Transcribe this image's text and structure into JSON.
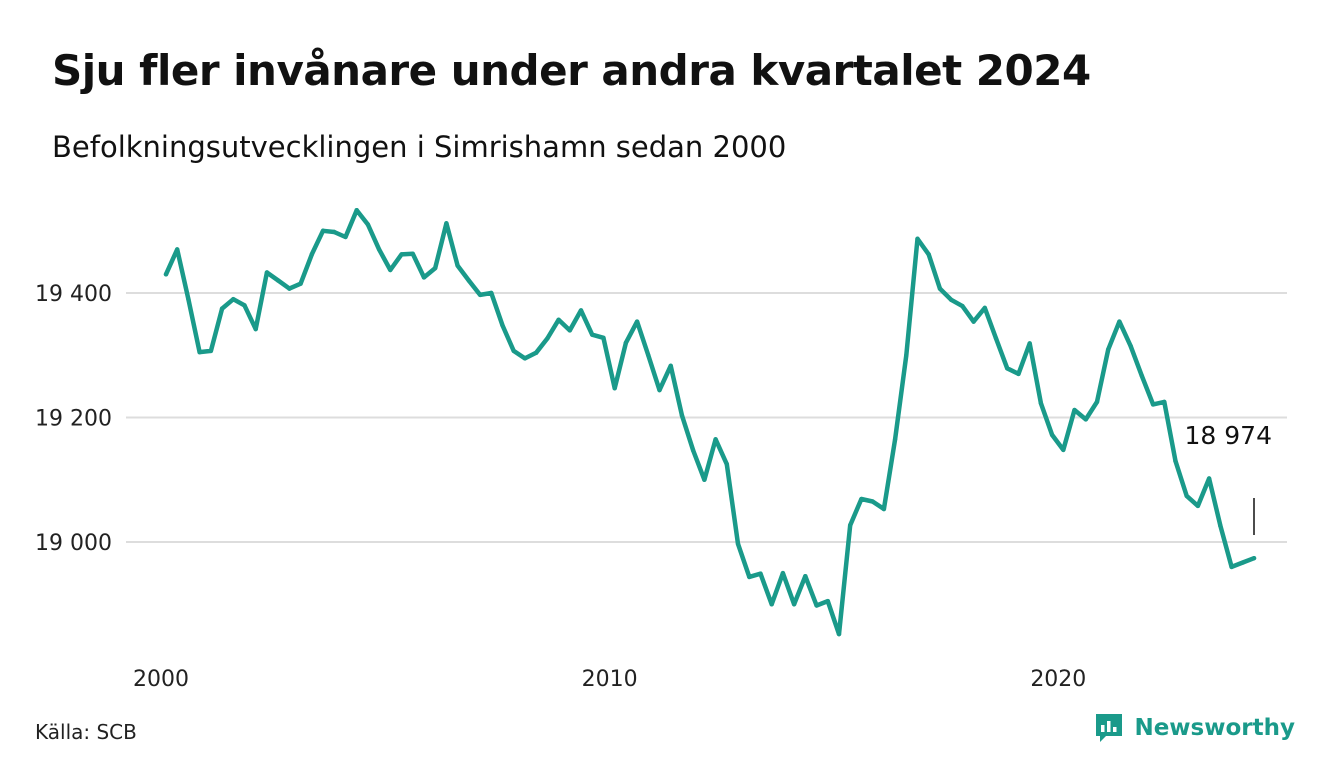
{
  "title": "Sju fler invånare under andra kvartalet 2024",
  "subtitle": "Befolkningsutvecklingen i Simrishamn sedan 2000",
  "source": "Källa: SCB",
  "brand": {
    "name": "Newsworthy",
    "icon": "newsworthy-logo-icon"
  },
  "colors": {
    "line": "#1a9a8a",
    "grid": "#dddddd",
    "text": "#111111"
  },
  "chart_data": {
    "type": "line",
    "title": "Sju fler invånare under andra kvartalet 2024",
    "subtitle": "Befolkningsutvecklingen i Simrishamn sedan 2000",
    "xlabel": "",
    "ylabel": "",
    "x_ticks": [
      {
        "value": 2000,
        "label": "2000"
      },
      {
        "value": 2010,
        "label": "2010"
      },
      {
        "value": 2020,
        "label": "2020"
      }
    ],
    "y_ticks": [
      {
        "value": 19000,
        "label": "19 000"
      },
      {
        "value": 19200,
        "label": "19 200"
      },
      {
        "value": 19400,
        "label": "19 400"
      }
    ],
    "xlim": [
      2000,
      2024.25
    ],
    "ylim": [
      18850,
      19540
    ],
    "grid": "horizontal",
    "end_label": "18 974",
    "series": [
      {
        "x": [
          2000.0,
          2000.25,
          2000.5,
          2000.75,
          2001.0,
          2001.25,
          2001.5,
          2001.75,
          2002.0,
          2002.25,
          2002.5,
          2002.75,
          2003.0,
          2003.25,
          2003.5,
          2003.75,
          2004.0,
          2004.25,
          2004.5,
          2004.75,
          2005.0,
          2005.25,
          2005.5,
          2005.75,
          2006.0,
          2006.25,
          2006.5,
          2006.75,
          2007.0,
          2007.25,
          2007.5,
          2007.75,
          2008.0,
          2008.25,
          2008.5,
          2008.75,
          2009.0,
          2009.25,
          2009.5,
          2009.75,
          2010.0,
          2010.25,
          2010.5,
          2010.75,
          2011.0,
          2011.25,
          2011.5,
          2011.75,
          2012.0,
          2012.25,
          2012.5,
          2012.75,
          2013.0,
          2013.25,
          2013.5,
          2013.75,
          2014.0,
          2014.25,
          2014.5,
          2014.75,
          2015.0,
          2015.25,
          2015.5,
          2015.75,
          2016.0,
          2016.25,
          2016.5,
          2016.75,
          2017.0,
          2017.25,
          2017.5,
          2017.75,
          2018.0,
          2018.25,
          2018.5,
          2018.75,
          2019.0,
          2019.25,
          2019.5,
          2019.75,
          2020.0,
          2020.25,
          2020.5,
          2020.75,
          2021.0,
          2021.25,
          2021.5,
          2021.75,
          2022.0,
          2022.25,
          2022.5,
          2022.75,
          2023.0,
          2023.25,
          2023.5,
          2023.75,
          2024.0,
          2024.25
        ],
        "values": [
          19430,
          19470,
          19390,
          19305,
          19307,
          19375,
          19390,
          19380,
          19342,
          19433,
          19420,
          19407,
          19415,
          19462,
          19500,
          19498,
          19490,
          19533,
          19510,
          19470,
          19437,
          19462,
          19463,
          19425,
          19440,
          19512,
          19444,
          19420,
          19397,
          19400,
          19348,
          19307,
          19295,
          19304,
          19327,
          19357,
          19340,
          19372,
          19333,
          19328,
          19247,
          19320,
          19354,
          19300,
          19244,
          19283,
          19203,
          19147,
          19100,
          19165,
          19125,
          18997,
          18944,
          18949,
          18900,
          18950,
          18900,
          18945,
          18898,
          18905,
          18852,
          19027,
          19069,
          19065,
          19053,
          19165,
          19300,
          19487,
          19462,
          19407,
          19389,
          19379,
          19354,
          19376,
          19327,
          19279,
          19270,
          19319,
          19223,
          19172,
          19148,
          19212,
          19197,
          19225,
          19309,
          19354,
          19315,
          19267,
          19221,
          19225,
          19130,
          19074,
          19058,
          19102,
          19026,
          18960,
          18967,
          18974
        ]
      }
    ]
  }
}
